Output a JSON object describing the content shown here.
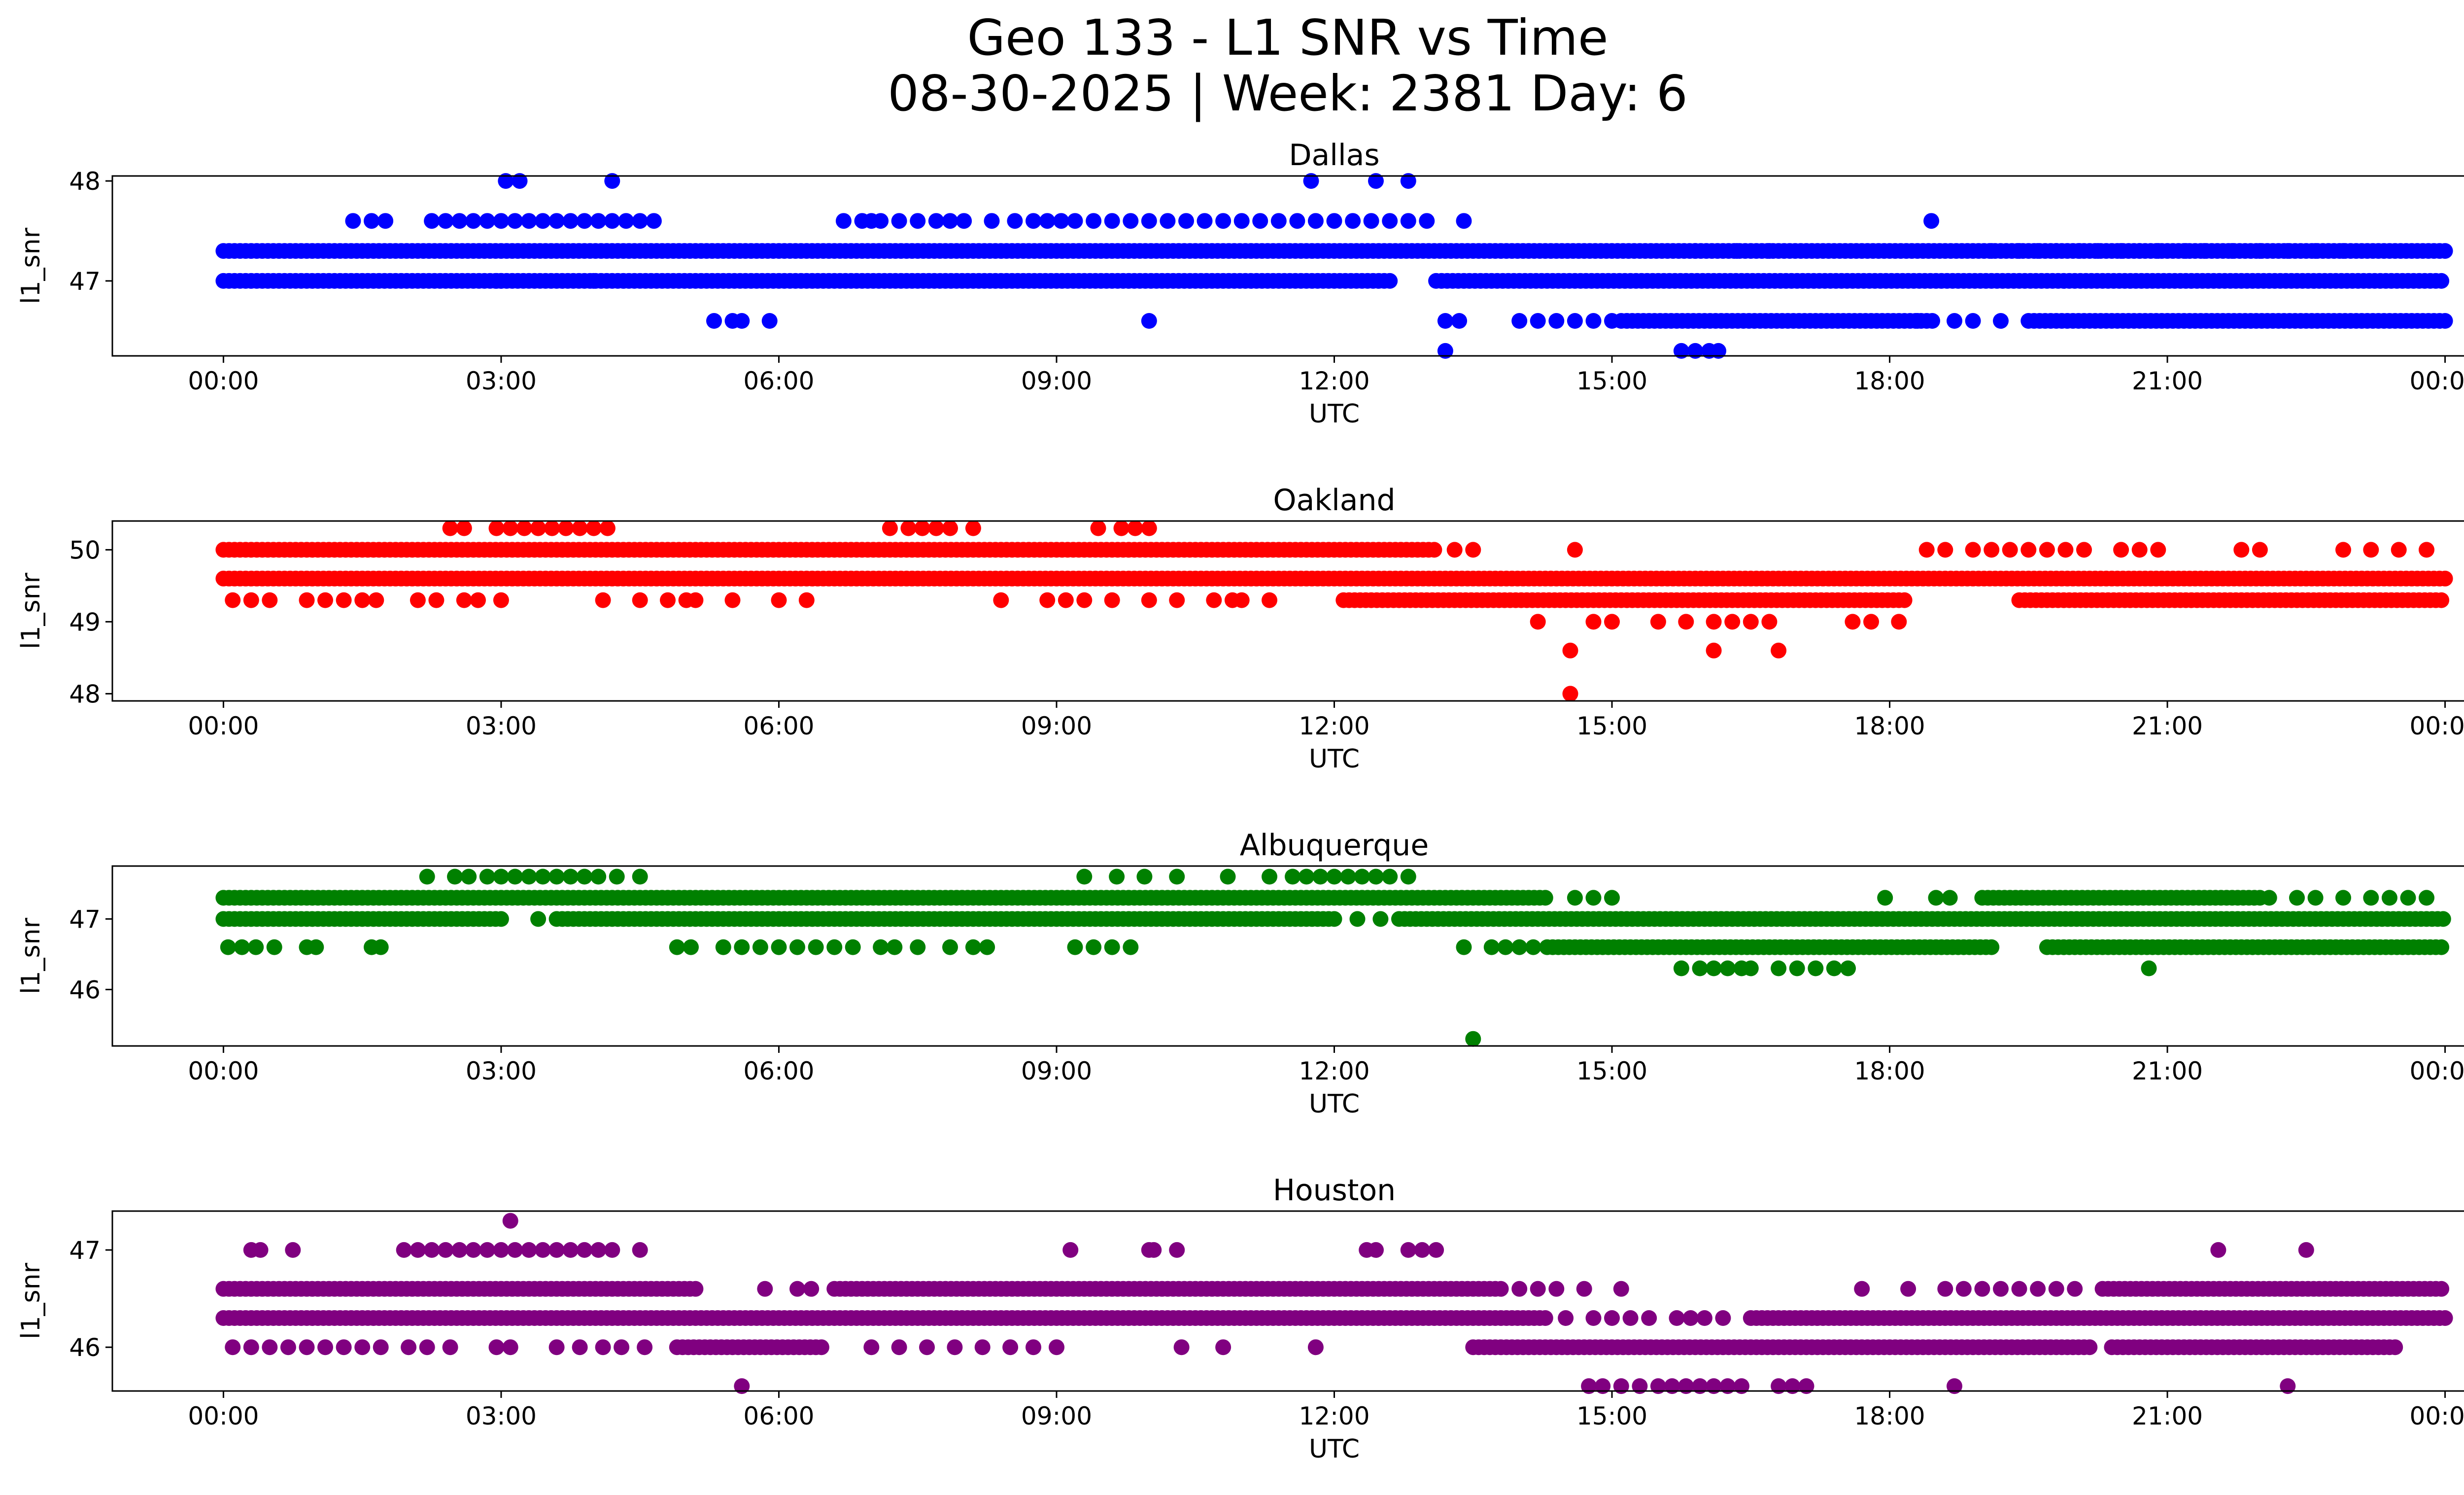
{
  "figure": {
    "title_line1": "Geo 133 - L1 SNR vs Time",
    "title_line2": "08-30-2025 | Week: 2381 Day: 6"
  },
  "chart_data": [
    {
      "type": "scatter",
      "title": "Dallas",
      "xlabel": "UTC",
      "ylabel": "l1_snr",
      "color": "#0000ff",
      "x_unit": "hours UTC",
      "xlim": [
        -1.2,
        25.2
      ],
      "ylim": [
        46.25,
        48.05
      ],
      "x_ticks": [
        0,
        3,
        6,
        9,
        12,
        15,
        18,
        21,
        24
      ],
      "x_tick_labels": [
        "00:00",
        "03:00",
        "06:00",
        "09:00",
        "12:00",
        "15:00",
        "18:00",
        "21:00",
        "00:00"
      ],
      "y_ticks": [
        47,
        48
      ],
      "y_tick_labels": [
        "47",
        "48"
      ],
      "dense_bands": [
        {
          "y": 47.3,
          "x_ranges": [
            [
              0,
              24
            ]
          ]
        },
        {
          "y": 47.0,
          "x_ranges": [
            [
              0,
              12.6
            ],
            [
              13.1,
              24
            ]
          ]
        },
        {
          "y": 46.6,
          "x_ranges": [
            [
              15.1,
              18.5
            ],
            [
              19.5,
              24
            ]
          ]
        }
      ],
      "sparse_points": [
        {
          "y": 48.0,
          "x": [
            3.05,
            3.2,
            4.2,
            11.75,
            12.45,
            12.8
          ]
        },
        {
          "y": 47.6,
          "x": [
            1.4,
            1.6,
            1.75,
            2.25,
            2.4,
            2.55,
            2.7,
            2.85,
            3.0,
            3.15,
            3.3,
            3.45,
            3.6,
            3.75,
            3.9,
            4.05,
            4.2,
            4.35,
            4.5,
            4.65,
            6.7,
            6.9,
            7.0,
            7.1,
            7.3,
            7.5,
            7.7,
            7.85,
            8.0,
            8.3,
            8.55,
            8.75,
            8.9,
            9.05,
            9.2,
            9.4,
            9.6,
            9.8,
            10.0,
            10.2,
            10.4,
            10.6,
            10.8,
            11.0,
            11.2,
            11.4,
            11.6,
            11.8,
            12.0,
            12.2,
            12.4,
            12.6,
            12.8,
            13.0,
            13.4,
            18.45
          ]
        },
        {
          "y": 47.3,
          "x": [
            15.9,
            16.35,
            16.7,
            19.1,
            19.4,
            19.6,
            19.8,
            20.05,
            20.25,
            20.5,
            20.7,
            20.9,
            21.2,
            21.4,
            21.7,
            22.0,
            22.3,
            22.6,
            22.9
          ]
        },
        {
          "y": 47.0,
          "x": [
            2.95,
            3.0,
            4.0
          ]
        },
        {
          "y": 46.6,
          "x": [
            5.3,
            5.5,
            5.6,
            5.9,
            10.0,
            13.2,
            13.35,
            14.0,
            14.2,
            14.4,
            14.6,
            14.8,
            15.0,
            18.3,
            18.7,
            18.9,
            19.2
          ]
        },
        {
          "y": 46.3,
          "x": [
            13.2,
            15.75,
            15.9,
            16.05,
            16.15
          ]
        }
      ]
    },
    {
      "type": "scatter",
      "title": "Oakland",
      "xlabel": "UTC",
      "ylabel": "l1_snr",
      "color": "#ff0000",
      "x_unit": "hours UTC",
      "xlim": [
        -1.2,
        25.2
      ],
      "ylim": [
        47.9,
        50.4
      ],
      "x_ticks": [
        0,
        3,
        6,
        9,
        12,
        15,
        18,
        21,
        24
      ],
      "x_tick_labels": [
        "00:00",
        "03:00",
        "06:00",
        "09:00",
        "12:00",
        "15:00",
        "18:00",
        "21:00",
        "00:00"
      ],
      "y_ticks": [
        48,
        49,
        50
      ],
      "y_tick_labels": [
        "48",
        "49",
        "50"
      ],
      "dense_bands": [
        {
          "y": 50.0,
          "x_ranges": [
            [
              0,
              13.1
            ]
          ]
        },
        {
          "y": 49.6,
          "x_ranges": [
            [
              0,
              24
            ]
          ]
        },
        {
          "y": 49.3,
          "x_ranges": [
            [
              12.1,
              18.2
            ],
            [
              19.4,
              24
            ]
          ]
        }
      ],
      "sparse_points": [
        {
          "y": 50.3,
          "x": [
            2.45,
            2.6,
            2.95,
            3.1,
            3.25,
            3.4,
            3.55,
            3.7,
            3.85,
            4.0,
            4.15,
            7.2,
            7.4,
            7.55,
            7.7,
            7.85,
            8.1,
            9.45,
            9.7,
            9.85,
            10.0
          ]
        },
        {
          "y": 50.0,
          "x": [
            13.3,
            13.5,
            14.6,
            18.4,
            18.6,
            18.9,
            19.1,
            19.3,
            19.5,
            19.7,
            19.9,
            20.1,
            20.5,
            20.7,
            20.9,
            21.8,
            22.0,
            22.9,
            23.2,
            23.5,
            23.8
          ]
        },
        {
          "y": 49.3,
          "x": [
            0.1,
            0.3,
            0.5,
            0.9,
            1.1,
            1.3,
            1.5,
            1.65,
            2.1,
            2.3,
            2.6,
            2.75,
            3.0,
            4.1,
            4.5,
            4.8,
            5.0,
            5.1,
            5.5,
            6.0,
            6.3,
            8.4,
            8.9,
            9.1,
            9.3,
            9.6,
            10.0,
            10.3,
            10.7,
            10.9,
            11.0,
            11.3
          ]
        },
        {
          "y": 49.0,
          "x": [
            14.2,
            14.8,
            15.0,
            15.5,
            15.8,
            16.1,
            16.3,
            16.5,
            16.7,
            17.6,
            17.8,
            18.1
          ]
        },
        {
          "y": 48.6,
          "x": [
            14.55,
            16.1,
            16.8
          ]
        },
        {
          "y": 48.0,
          "x": [
            14.55
          ]
        }
      ]
    },
    {
      "type": "scatter",
      "title": "Albuquerque",
      "xlabel": "UTC",
      "ylabel": "l1_snr",
      "color": "#008000",
      "x_unit": "hours UTC",
      "xlim": [
        -1.2,
        25.2
      ],
      "ylim": [
        45.2,
        47.75
      ],
      "x_ticks": [
        0,
        3,
        6,
        9,
        12,
        15,
        18,
        21,
        24
      ],
      "x_tick_labels": [
        "00:00",
        "03:00",
        "06:00",
        "09:00",
        "12:00",
        "15:00",
        "18:00",
        "21:00",
        "00:00"
      ],
      "y_ticks": [
        46,
        47
      ],
      "y_tick_labels": [
        "46",
        "47"
      ],
      "dense_bands": [
        {
          "y": 47.3,
          "x_ranges": [
            [
              0,
              14.3
            ],
            [
              19.0,
              22.0
            ]
          ]
        },
        {
          "y": 47.0,
          "x_ranges": [
            [
              0,
              3.0
            ],
            [
              3.6,
              12.0
            ],
            [
              12.7,
              24
            ]
          ]
        },
        {
          "y": 46.6,
          "x_ranges": [
            [
              14.3,
              19.1
            ],
            [
              19.7,
              24
            ]
          ]
        }
      ],
      "sparse_points": [
        {
          "y": 47.6,
          "x": [
            2.2,
            2.5,
            2.65,
            2.85,
            3.0,
            3.15,
            3.3,
            3.45,
            3.6,
            3.75,
            3.9,
            4.05,
            4.25,
            4.5,
            9.3,
            9.65,
            9.95,
            10.3,
            10.85,
            11.3,
            11.55,
            11.7,
            11.85,
            12.0,
            12.15,
            12.3,
            12.45,
            12.6,
            12.8
          ]
        },
        {
          "y": 47.3,
          "x": [
            14.6,
            14.8,
            15.0,
            17.95,
            18.5,
            18.65,
            22.1,
            22.4,
            22.6,
            22.9,
            23.2,
            23.4,
            23.6,
            23.8
          ]
        },
        {
          "y": 47.0,
          "x": [
            3.4,
            12.25,
            12.5
          ]
        },
        {
          "y": 46.6,
          "x": [
            0.05,
            0.2,
            0.35,
            0.55,
            0.9,
            1.0,
            1.6,
            1.7,
            4.9,
            5.05,
            5.4,
            5.6,
            5.8,
            6.0,
            6.2,
            6.4,
            6.6,
            6.8,
            7.1,
            7.25,
            7.5,
            7.85,
            8.1,
            8.25,
            9.2,
            9.4,
            9.6,
            9.8,
            13.4,
            13.7,
            13.85,
            14.0,
            14.15
          ]
        },
        {
          "y": 46.3,
          "x": [
            15.75,
            15.95,
            16.1,
            16.25,
            16.4,
            16.5,
            16.8,
            17.0,
            17.2,
            17.4,
            17.55,
            20.8
          ]
        },
        {
          "y": 45.3,
          "x": [
            13.5
          ]
        }
      ]
    },
    {
      "type": "scatter",
      "title": "Houston",
      "xlabel": "UTC",
      "ylabel": "l1_snr",
      "color": "#800080",
      "x_unit": "hours UTC",
      "xlim": [
        -1.2,
        25.2
      ],
      "ylim": [
        45.55,
        47.4
      ],
      "x_ticks": [
        0,
        3,
        6,
        9,
        12,
        15,
        18,
        21,
        24
      ],
      "x_tick_labels": [
        "00:00",
        "03:00",
        "06:00",
        "09:00",
        "12:00",
        "15:00",
        "18:00",
        "21:00",
        "00:00"
      ],
      "y_ticks": [
        46,
        47
      ],
      "y_tick_labels": [
        "46",
        "47"
      ],
      "dense_bands": [
        {
          "y": 46.6,
          "x_ranges": [
            [
              0,
              5.1
            ],
            [
              6.6,
              13.8
            ],
            [
              20.3,
              24
            ]
          ]
        },
        {
          "y": 46.3,
          "x_ranges": [
            [
              0,
              14.3
            ],
            [
              16.5,
              24
            ]
          ]
        },
        {
          "y": 46.0,
          "x_ranges": [
            [
              4.9,
              6.5
            ],
            [
              13.5,
              20.2
            ],
            [
              20.4,
              23.5
            ]
          ]
        }
      ],
      "sparse_points": [
        {
          "y": 47.3,
          "x": [
            3.1
          ]
        },
        {
          "y": 47.0,
          "x": [
            0.3,
            0.4,
            0.75,
            1.95,
            2.1,
            2.25,
            2.4,
            2.55,
            2.7,
            2.85,
            3.0,
            3.15,
            3.3,
            3.45,
            3.6,
            3.75,
            3.9,
            4.05,
            4.2,
            4.5,
            9.15,
            10.0,
            10.05,
            10.3,
            12.35,
            12.45,
            12.8,
            12.95,
            13.1,
            21.55,
            22.5
          ]
        },
        {
          "y": 46.6,
          "x": [
            5.85,
            6.2,
            6.35,
            14.0,
            14.2,
            14.4,
            14.7,
            15.1,
            17.7,
            18.2,
            18.6,
            18.8,
            19.0,
            19.2,
            19.4,
            19.6,
            19.8,
            20.0
          ]
        },
        {
          "y": 46.3,
          "x": [
            14.5,
            14.8,
            15.0,
            15.2,
            15.4,
            15.7,
            15.85,
            16.0,
            16.2
          ]
        },
        {
          "y": 46.0,
          "x": [
            0.1,
            0.3,
            0.5,
            0.7,
            0.9,
            1.1,
            1.3,
            1.5,
            1.7,
            2.0,
            2.2,
            2.45,
            2.95,
            3.1,
            3.6,
            3.85,
            4.1,
            4.3,
            4.55,
            7.0,
            7.3,
            7.6,
            7.9,
            8.2,
            8.5,
            8.75,
            9.0,
            10.35,
            10.8,
            11.8
          ]
        },
        {
          "y": 45.6,
          "x": [
            5.6,
            14.75,
            14.9,
            15.1,
            15.3,
            15.5,
            15.65,
            15.8,
            15.95,
            16.1,
            16.25,
            16.4,
            16.8,
            16.95,
            17.1,
            18.7,
            22.3
          ]
        }
      ]
    }
  ]
}
